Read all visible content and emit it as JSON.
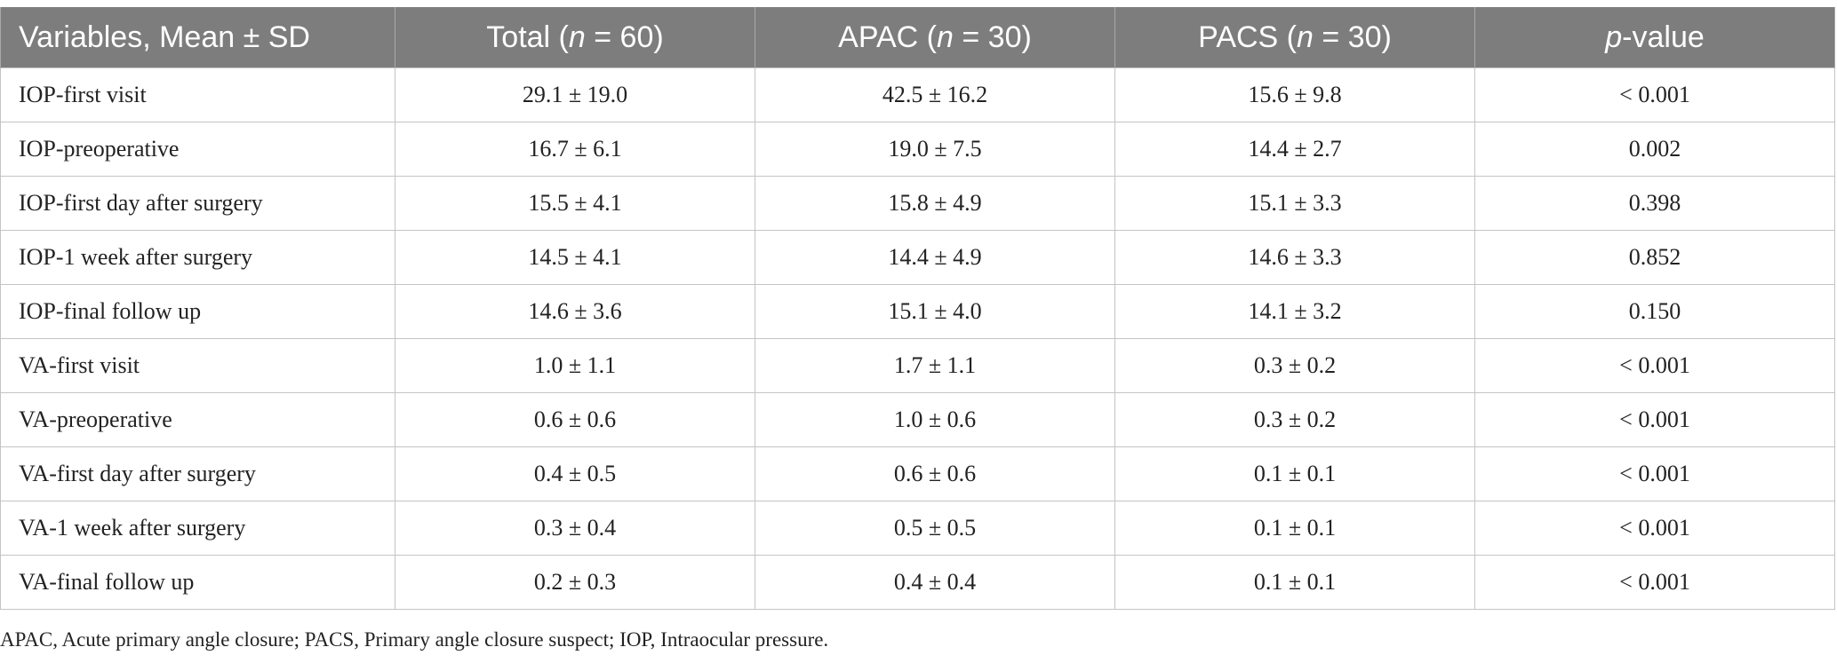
{
  "table": {
    "header": {
      "variables": "Variables, Mean ± SD",
      "total": {
        "label": "Total (",
        "n": "n",
        "rest": " = 60)"
      },
      "apac": {
        "label": "APAC (",
        "n": "n",
        "rest": " = 30)"
      },
      "pacs": {
        "label": "PACS (",
        "n": "n",
        "rest": " = 30)"
      },
      "pvalue": {
        "p": "p",
        "rest": "-value"
      }
    },
    "rows": [
      {
        "variable": "IOP-first visit",
        "total": "29.1 ± 19.0",
        "apac": "42.5 ± 16.2",
        "pacs": "15.6 ± 9.8",
        "p": "< 0.001"
      },
      {
        "variable": "IOP-preoperative",
        "total": "16.7 ± 6.1",
        "apac": "19.0 ± 7.5",
        "pacs": "14.4 ± 2.7",
        "p": "0.002"
      },
      {
        "variable": "IOP-first day after surgery",
        "total": "15.5 ± 4.1",
        "apac": "15.8 ± 4.9",
        "pacs": "15.1 ± 3.3",
        "p": "0.398"
      },
      {
        "variable": "IOP-1 week after surgery",
        "total": "14.5 ± 4.1",
        "apac": "14.4 ± 4.9",
        "pacs": "14.6 ± 3.3",
        "p": "0.852"
      },
      {
        "variable": "IOP-final follow up",
        "total": "14.6 ± 3.6",
        "apac": "15.1 ± 4.0",
        "pacs": "14.1 ± 3.2",
        "p": "0.150"
      },
      {
        "variable": "VA-first visit",
        "total": "1.0 ± 1.1",
        "apac": "1.7 ± 1.1",
        "pacs": "0.3 ± 0.2",
        "p": "< 0.001"
      },
      {
        "variable": "VA-preoperative",
        "total": "0.6 ± 0.6",
        "apac": "1.0 ± 0.6",
        "pacs": "0.3 ± 0.2",
        "p": "< 0.001"
      },
      {
        "variable": "VA-first day after surgery",
        "total": "0.4 ± 0.5",
        "apac": "0.6 ± 0.6",
        "pacs": "0.1 ± 0.1",
        "p": "< 0.001"
      },
      {
        "variable": "VA-1 week after surgery",
        "total": "0.3 ± 0.4",
        "apac": "0.5 ± 0.5",
        "pacs": "0.1 ± 0.1",
        "p": "< 0.001"
      },
      {
        "variable": "VA-final follow up",
        "total": "0.2 ± 0.3",
        "apac": "0.4 ± 0.4",
        "pacs": "0.1 ± 0.1",
        "p": "< 0.001"
      }
    ]
  },
  "footnote": "APAC, Acute primary angle closure; PACS, Primary angle closure suspect; IOP, Intraocular pressure.",
  "colors": {
    "header_bg": "#7d7d7d",
    "header_text": "#ffffff",
    "grid": "#c4c4c4"
  }
}
